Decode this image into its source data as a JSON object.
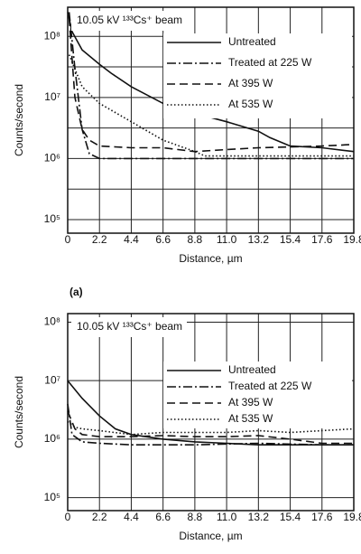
{
  "chart_data": [
    {
      "type": "line",
      "label": "(a)",
      "annotation": "10.05 kV ¹³³Cs⁺ beam",
      "xlabel": "Distance, µm",
      "ylabel": "Counts/second",
      "ylog": true,
      "grid": true,
      "legend": "upper right",
      "xlim": [
        0,
        19.8
      ],
      "ylim": [
        60000,
        300000000
      ],
      "xticks": [
        0,
        2.2,
        4.4,
        6.6,
        8.8,
        {
          "value": 11,
          "label": "11.0"
        },
        13.2,
        15.4,
        17.6,
        19.8
      ],
      "yticks": [
        {
          "value": 100000,
          "label": "10⁵"
        },
        {
          "value": 1000000,
          "label": "10⁶"
        },
        {
          "value": 10000000,
          "label": "10⁷"
        },
        {
          "value": 100000000,
          "label": "10⁸"
        }
      ],
      "ygrid_minor": [
        316228,
        3162278,
        31622777
      ],
      "series": [
        {
          "name": "Untreated",
          "color": "#111111",
          "dash": "solid",
          "x": [
            0,
            0.3,
            1,
            2.2,
            3,
            4.4,
            6.6,
            8.8,
            11,
            13.2,
            14,
            15.4,
            17.6,
            19.8
          ],
          "values": [
            250000000,
            120000000,
            60000000,
            35000000,
            25000000,
            15000000,
            8000000,
            5500000,
            4000000,
            2800000,
            2200000,
            1600000,
            1500000,
            1300000
          ]
        },
        {
          "name": "Treated at 225 W",
          "color": "#111111",
          "dash": "dashdot",
          "x": [
            0.1,
            0.5,
            1,
            1.5,
            2.2,
            4.4,
            8.8,
            13.2,
            17.6,
            19.8
          ],
          "values": [
            250000000,
            30000000,
            3000000,
            1200000,
            1000000,
            1000000,
            1000000,
            1000000,
            1000000,
            1000000
          ]
        },
        {
          "name": "At 395 W",
          "color": "#111111",
          "dash": "dashed",
          "x": [
            0.1,
            0.5,
            1,
            1.5,
            2.2,
            4.4,
            6.6,
            8.8,
            11,
            13.2,
            17.6,
            19.8
          ],
          "values": [
            200000000,
            10000000,
            3000000,
            2000000,
            1600000,
            1500000,
            1500000,
            1300000,
            1400000,
            1500000,
            1600000,
            1700000
          ]
        },
        {
          "name": "At 535 W",
          "color": "#111111",
          "dash": "dotted",
          "x": [
            0.1,
            1,
            2.2,
            4.4,
            6.6,
            8.8,
            9.5,
            11,
            15.4,
            19.8
          ],
          "values": [
            50000000,
            15000000,
            8000000,
            4000000,
            2000000,
            1300000,
            1100000,
            1100000,
            1100000,
            1100000
          ]
        }
      ]
    },
    {
      "type": "line",
      "annotation": "10.05 kV ¹³³Cs⁺ beam",
      "xlabel": "Distance, µm",
      "ylabel": "Counts/second",
      "ylog": true,
      "grid": true,
      "legend": "upper right",
      "xlim": [
        0,
        19.8
      ],
      "ylim": [
        60000,
        140000000
      ],
      "xticks": [
        0,
        2.2,
        4.4,
        6.6,
        8.8,
        {
          "value": 11,
          "label": "11.0"
        },
        13.2,
        15.4,
        17.6,
        19.8
      ],
      "yticks": [
        {
          "value": 100000,
          "label": "10⁵"
        },
        {
          "value": 1000000,
          "label": "10⁶"
        },
        {
          "value": 10000000,
          "label": "10⁷"
        },
        {
          "value": 100000000,
          "label": "10⁸"
        }
      ],
      "series": [
        {
          "name": "Untreated",
          "color": "#111111",
          "dash": "solid",
          "x": [
            0,
            1,
            2.2,
            3.3,
            4.4,
            6.6,
            8.8,
            11,
            13.2,
            17.6,
            19.8
          ],
          "values": [
            10000000,
            5000000,
            2500000,
            1500000,
            1200000,
            1000000,
            900000,
            850000,
            800000,
            800000,
            800000
          ]
        },
        {
          "name": "Treated at 225 W",
          "color": "#111111",
          "dash": "dashdot",
          "x": [
            0,
            0.3,
            1,
            2.2,
            4.4,
            8.8,
            13.2,
            17.6,
            19.8
          ],
          "values": [
            4000000,
            1200000,
            900000,
            850000,
            800000,
            800000,
            850000,
            800000,
            800000
          ]
        },
        {
          "name": "At 395 W",
          "color": "#111111",
          "dash": "dashed",
          "x": [
            0,
            0.5,
            1,
            2.2,
            4.4,
            6.6,
            8.8,
            11,
            13.2,
            15.4,
            17.6,
            19.8
          ],
          "values": [
            3000000,
            1500000,
            1200000,
            1100000,
            1100000,
            1150000,
            1100000,
            1100000,
            1150000,
            1000000,
            850000,
            850000
          ]
        },
        {
          "name": "At 535 W",
          "color": "#111111",
          "dash": "dotted",
          "x": [
            0,
            0.5,
            1,
            2.2,
            4.4,
            6.6,
            8.8,
            11,
            13.2,
            15.4,
            17.6,
            19.8
          ],
          "values": [
            2000000,
            1600000,
            1500000,
            1400000,
            1200000,
            1300000,
            1300000,
            1300000,
            1400000,
            1300000,
            1400000,
            1500000
          ]
        }
      ]
    }
  ]
}
